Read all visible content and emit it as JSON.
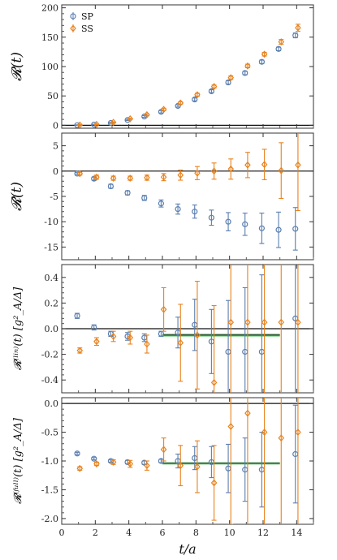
{
  "chart_data": [
    {
      "type": "scatter",
      "ylabel": "𝓡(t)",
      "ylim": [
        -5,
        205
      ],
      "yticks": [
        0,
        50,
        100,
        150,
        200
      ],
      "xlim": [
        0,
        15
      ],
      "zero_line": true,
      "legend": {
        "placement": "top-left",
        "entries": [
          "SP",
          "SS"
        ]
      },
      "series": [
        {
          "name": "SP",
          "color": "#5b7fb0",
          "marker": "circle",
          "x": [
            1,
            2,
            3,
            4,
            5,
            6,
            7,
            8,
            9,
            10,
            11,
            12,
            13,
            14
          ],
          "y": [
            0.3,
            1.2,
            4,
            9,
            15,
            23,
            33,
            44,
            58,
            73,
            89,
            108,
            130,
            153
          ],
          "err": [
            0.5,
            0.5,
            0.8,
            1,
            1.5,
            2,
            2,
            2.5,
            2.5,
            3,
            3,
            3,
            3,
            4
          ]
        },
        {
          "name": "SS",
          "color": "#e8821c",
          "marker": "diamond",
          "x": [
            1,
            2,
            3,
            4,
            5,
            6,
            7,
            8,
            9,
            10,
            11,
            12,
            13,
            14
          ],
          "y": [
            0.5,
            1.5,
            5,
            11,
            18,
            27,
            38,
            52,
            66,
            81,
            101,
            121,
            142,
            166
          ],
          "err": [
            0.5,
            0.5,
            0.8,
            1,
            1.5,
            2,
            2,
            2.5,
            2.5,
            3,
            3,
            3,
            4,
            6
          ]
        }
      ]
    },
    {
      "type": "scatter",
      "ylabel": "𝓡̂(t)",
      "ylim": [
        -17.5,
        7.5
      ],
      "yticks": [
        -15,
        -10,
        -5,
        0,
        5
      ],
      "xlim": [
        0,
        15
      ],
      "zero_line": true,
      "series": [
        {
          "name": "SP",
          "color": "#5b7fb0",
          "marker": "circle",
          "x": [
            1,
            2,
            3,
            4,
            5,
            6,
            7,
            8,
            9,
            10,
            11,
            12,
            13,
            14
          ],
          "y": [
            -0.5,
            -1.5,
            -3,
            -4.3,
            -5.3,
            -6.4,
            -7.5,
            -8,
            -9.2,
            -10,
            -10.5,
            -11.3,
            -11.6,
            -11.4
          ],
          "err": [
            0.2,
            0.3,
            0.4,
            0.4,
            0.5,
            0.7,
            1,
            1.3,
            1.5,
            1.8,
            2.2,
            3,
            3.5,
            4.2
          ]
        },
        {
          "name": "SS",
          "color": "#e8821c",
          "marker": "diamond",
          "x": [
            1,
            2,
            3,
            4,
            5,
            6,
            7,
            8,
            9,
            10,
            11,
            12,
            13,
            14
          ],
          "y": [
            -0.5,
            -1.2,
            -1.4,
            -1.4,
            -1.3,
            -1.2,
            -0.8,
            -0.4,
            0,
            0.4,
            1.2,
            1.3,
            0.1,
            1.2
          ],
          "err": [
            0.3,
            0.4,
            0.4,
            0.4,
            0.5,
            0.7,
            1,
            1.3,
            1.6,
            2,
            2.5,
            3,
            5.5,
            9
          ]
        }
      ]
    },
    {
      "type": "scatter",
      "ylabel": "𝓡⁽ˡⁱⁿ⁾(t)  [g²_A/Δ]",
      "ylim": [
        -0.5,
        0.5
      ],
      "yticks": [
        -0.4,
        -0.2,
        0.0,
        0.2,
        0.4
      ],
      "xlim": [
        0,
        15
      ],
      "zero_line": true,
      "fit_band": {
        "x_start": 6,
        "x_end": 13,
        "value": -0.05,
        "uncertainty": 0.012
      },
      "series": [
        {
          "name": "SP",
          "color": "#5b7fb0",
          "marker": "circle",
          "x": [
            1,
            2,
            3,
            4,
            5,
            6,
            7,
            8,
            9,
            10,
            11,
            12,
            14
          ],
          "y": [
            0.1,
            0.01,
            -0.04,
            -0.06,
            -0.07,
            -0.04,
            -0.03,
            0.03,
            -0.1,
            -0.18,
            -0.18,
            -0.18,
            0.08
          ],
          "err": [
            0.02,
            0.02,
            0.02,
            0.03,
            0.03,
            0.02,
            0.12,
            0.2,
            0.25,
            0.4,
            0.5,
            0.6,
            0.8
          ]
        },
        {
          "name": "SS",
          "color": "#e8821c",
          "marker": "diamond",
          "x": [
            1,
            2,
            3,
            4,
            5,
            6,
            7,
            8,
            9,
            10,
            11,
            12,
            13,
            14
          ],
          "y": [
            -0.17,
            -0.1,
            -0.06,
            -0.07,
            -0.12,
            0.15,
            -0.11,
            -0.05,
            -0.42,
            0.05,
            0.05,
            0.05,
            0.05,
            0.05
          ],
          "err": [
            0.02,
            0.03,
            0.04,
            0.05,
            0.07,
            0.17,
            0.3,
            0.42,
            0.6,
            0.9,
            1.2,
            1.5,
            1.8,
            2
          ]
        }
      ]
    },
    {
      "type": "scatter",
      "ylabel": "𝓡⁽ᶠᵘˡˡ⁾(t)  [g²_A/Δ]",
      "xlabel": "t/a",
      "ylim": [
        -2.1,
        0.1
      ],
      "yticks": [
        -2.0,
        -1.5,
        -1.0,
        -0.5,
        0.0
      ],
      "xlim": [
        0,
        15
      ],
      "xticks": [
        0,
        2,
        4,
        6,
        8,
        10,
        12,
        14
      ],
      "zero_line": true,
      "fit_band": {
        "x_start": 6,
        "x_end": 13,
        "value": -1.04,
        "uncertainty": 0.02
      },
      "series": [
        {
          "name": "SP",
          "color": "#5b7fb0",
          "marker": "circle",
          "x": [
            1,
            2,
            3,
            4,
            5,
            6,
            7,
            8,
            9,
            10,
            11,
            12,
            14
          ],
          "y": [
            -0.87,
            -0.96,
            -1.0,
            -1.02,
            -1.03,
            -1.0,
            -1.0,
            -0.95,
            -1.02,
            -1.13,
            -1.15,
            -1.15,
            -0.88
          ],
          "err": [
            0.02,
            0.02,
            0.02,
            0.03,
            0.03,
            0.03,
            0.12,
            0.2,
            0.27,
            0.42,
            0.55,
            0.65,
            0.85
          ]
        },
        {
          "name": "SS",
          "color": "#e8821c",
          "marker": "diamond",
          "x": [
            1,
            2,
            3,
            4,
            5,
            6,
            7,
            8,
            9,
            10,
            11,
            12,
            13,
            14
          ],
          "y": [
            -1.13,
            -1.05,
            -1.02,
            -1.05,
            -1.08,
            -0.8,
            -1.08,
            -1.1,
            -1.38,
            -0.4,
            -0.17,
            -0.5,
            -0.6,
            -0.5
          ],
          "err": [
            0.03,
            0.03,
            0.04,
            0.06,
            0.08,
            0.2,
            0.35,
            0.45,
            0.65,
            1.7,
            2,
            2,
            2,
            2
          ]
        }
      ]
    }
  ]
}
